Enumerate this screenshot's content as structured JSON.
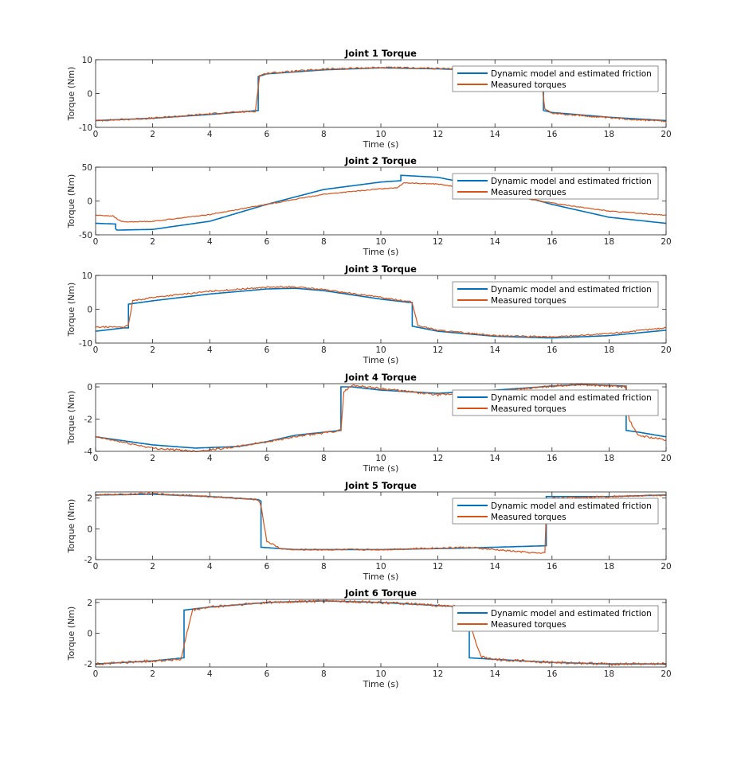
{
  "colors": {
    "model": "#0072BD",
    "measured": "#D95319",
    "axis": "#262626",
    "legend_border": "#777777"
  },
  "legend": {
    "placement": "top-right",
    "model_label": "Dynamic model and estimated friction",
    "measured_label": "Measured torques"
  },
  "chart_data": [
    {
      "type": "line",
      "title": "Joint 1 Torque",
      "xlabel": "Time (s)",
      "ylabel": "Torque (Nm)",
      "xlim": [
        0,
        20
      ],
      "ylim": [
        -10,
        10
      ],
      "xticks": [
        0,
        2,
        4,
        6,
        8,
        10,
        12,
        14,
        16,
        18,
        20
      ],
      "yticks": [
        -10,
        0,
        10
      ],
      "grid": false,
      "series": [
        {
          "name": "Dynamic model and estimated friction",
          "x": [
            0,
            2,
            4,
            5.7,
            5.7,
            6,
            8,
            10,
            12,
            13,
            15.7,
            15.7,
            16,
            18,
            20
          ],
          "y": [
            -8,
            -7.3,
            -6.2,
            -5,
            5,
            5.8,
            7,
            7.6,
            7.3,
            7.0,
            6.5,
            -5,
            -5.6,
            -7,
            -8
          ]
        },
        {
          "name": "Measured torques",
          "noise": 0.25,
          "x": [
            0,
            2,
            4,
            5.6,
            5.75,
            6,
            8,
            10,
            12,
            13,
            15.6,
            15.75,
            16,
            18,
            20
          ],
          "y": [
            -8,
            -7.3,
            -6,
            -5.2,
            5.3,
            6,
            7.2,
            7.7,
            7.4,
            7.0,
            6.6,
            -4.6,
            -5.8,
            -7.2,
            -8.2
          ]
        }
      ]
    },
    {
      "type": "line",
      "title": "Joint 2 Torque",
      "xlabel": "Time (s)",
      "ylabel": "Torque (Nm)",
      "xlim": [
        0,
        20
      ],
      "ylim": [
        -50,
        50
      ],
      "xticks": [
        0,
        2,
        4,
        6,
        8,
        10,
        12,
        14,
        16,
        18,
        20
      ],
      "yticks": [
        -50,
        0,
        50
      ],
      "grid": false,
      "series": [
        {
          "name": "Dynamic model and estimated friction",
          "x": [
            0,
            0.7,
            0.7,
            0.75,
            2,
            4,
            6,
            8,
            10,
            10.7,
            10.7,
            12,
            14,
            16,
            18,
            20
          ],
          "y": [
            -33,
            -34,
            -41,
            -43,
            -42,
            -30,
            -5,
            17,
            28,
            30,
            38,
            35,
            18,
            -5,
            -24,
            -33
          ]
        },
        {
          "name": "Measured torques",
          "noise": 0.6,
          "x": [
            0,
            0.6,
            0.8,
            1,
            2,
            4,
            6,
            8,
            10,
            10.6,
            10.8,
            12,
            14,
            16,
            18,
            20
          ],
          "y": [
            -21,
            -22,
            -28,
            -31,
            -30,
            -20,
            -5,
            10,
            18,
            20,
            27,
            25,
            12,
            -3,
            -15,
            -21
          ]
        }
      ]
    },
    {
      "type": "line",
      "title": "Joint 3 Torque",
      "xlabel": "Time (s)",
      "ylabel": "Torque (Nm)",
      "xlim": [
        0,
        20
      ],
      "ylim": [
        -10,
        10
      ],
      "xticks": [
        0,
        2,
        4,
        6,
        8,
        10,
        12,
        14,
        16,
        18,
        20
      ],
      "yticks": [
        -10,
        0,
        10
      ],
      "grid": false,
      "series": [
        {
          "name": "Dynamic model and estimated friction",
          "x": [
            0,
            1,
            1.15,
            1.15,
            2,
            4,
            6,
            7,
            8,
            10,
            11,
            11.1,
            11.1,
            12,
            14,
            16,
            18,
            20
          ],
          "y": [
            -6.5,
            -5.5,
            -5.5,
            1.5,
            2.5,
            4.5,
            6,
            6.2,
            5.5,
            3,
            2,
            2,
            -5,
            -6.5,
            -8,
            -8.5,
            -7.8,
            -6.2
          ]
        },
        {
          "name": "Measured torques",
          "noise": 0.2,
          "x": [
            0,
            1,
            1.15,
            1.3,
            2,
            4,
            6,
            7,
            8,
            10,
            11,
            11.1,
            11.3,
            12,
            14,
            16,
            18,
            20
          ],
          "y": [
            -5.3,
            -5.2,
            -4.8,
            2.5,
            3.5,
            5.3,
            6.5,
            6.6,
            5.8,
            3.5,
            2.3,
            1.8,
            -4.8,
            -6.2,
            -7.8,
            -8.2,
            -7.2,
            -5.5
          ]
        }
      ]
    },
    {
      "type": "line",
      "title": "Joint 4 Torque",
      "xlabel": "Time (s)",
      "ylabel": "Torque (Nm)",
      "xlim": [
        0,
        20
      ],
      "ylim": [
        -4,
        0.2
      ],
      "xticks": [
        0,
        2,
        4,
        6,
        8,
        10,
        12,
        14,
        16,
        18,
        20
      ],
      "yticks": [
        -4,
        -2,
        0
      ],
      "grid": false,
      "series": [
        {
          "name": "Dynamic model and estimated friction",
          "x": [
            0,
            2,
            3.5,
            5,
            6,
            7,
            8.6,
            8.6,
            9,
            10,
            12,
            14,
            16,
            17,
            18.6,
            18.6,
            19,
            20
          ],
          "y": [
            -3.1,
            -3.6,
            -3.8,
            -3.7,
            -3.4,
            -3.0,
            -2.7,
            0,
            0,
            -0.2,
            -0.4,
            -0.2,
            0.05,
            0.15,
            0.05,
            -2.7,
            -2.8,
            -3.1
          ]
        },
        {
          "name": "Measured torques",
          "noise": 0.06,
          "x": [
            0,
            2,
            3.5,
            5,
            6,
            7,
            8.6,
            8.7,
            9,
            10,
            12,
            14,
            16,
            17,
            18.6,
            18.7,
            19,
            20
          ],
          "y": [
            -3.1,
            -3.8,
            -4.0,
            -3.7,
            -3.4,
            -3.1,
            -2.7,
            -0.3,
            0.1,
            -0.1,
            -0.5,
            -0.3,
            0.05,
            0.15,
            0,
            -2.0,
            -3.0,
            -3.3
          ]
        }
      ]
    },
    {
      "type": "line",
      "title": "Joint 5 Torque",
      "xlabel": "Time (s)",
      "ylabel": "Torque (Nm)",
      "xlim": [
        0,
        20
      ],
      "ylim": [
        -2,
        2.4
      ],
      "xticks": [
        0,
        2,
        4,
        6,
        8,
        10,
        12,
        14,
        16,
        18,
        20
      ],
      "yticks": [
        -2,
        0,
        2
      ],
      "grid": false,
      "series": [
        {
          "name": "Dynamic model and estimated friction",
          "x": [
            0,
            2,
            4,
            5.7,
            5.8,
            5.8,
            7,
            10,
            13,
            15.8,
            15.8,
            16,
            18,
            20
          ],
          "y": [
            2.2,
            2.25,
            2.1,
            1.9,
            1.8,
            -1.2,
            -1.35,
            -1.35,
            -1.25,
            -1.1,
            2.1,
            2.1,
            2.1,
            2.2
          ]
        },
        {
          "name": "Measured torques",
          "noise": 0.05,
          "x": [
            0,
            2,
            4,
            5.7,
            5.8,
            6.0,
            6.5,
            7,
            10,
            13,
            15.6,
            15.75,
            15.8,
            16,
            18,
            20
          ],
          "y": [
            2.2,
            2.3,
            2.1,
            1.9,
            1.5,
            -0.8,
            -1.3,
            -1.35,
            -1.35,
            -1.2,
            -1.6,
            -1.5,
            1.2,
            2.0,
            2.1,
            2.2
          ]
        }
      ]
    },
    {
      "type": "line",
      "title": "Joint 6 Torque",
      "xlabel": "Time (s)",
      "ylabel": "Torque (Nm)",
      "xlim": [
        0,
        20
      ],
      "ylim": [
        -2.2,
        2.2
      ],
      "xticks": [
        0,
        2,
        4,
        6,
        8,
        10,
        12,
        14,
        16,
        18,
        20
      ],
      "yticks": [
        -2,
        0,
        2
      ],
      "grid": false,
      "series": [
        {
          "name": "Dynamic model and estimated friction",
          "x": [
            0,
            2,
            3.1,
            3.1,
            4,
            6,
            8,
            10,
            12,
            13.1,
            13.1,
            14,
            16,
            18,
            20
          ],
          "y": [
            -2,
            -1.8,
            -1.6,
            1.5,
            1.7,
            2.0,
            2.1,
            2.0,
            1.8,
            1.7,
            -1.6,
            -1.7,
            -1.9,
            -2.0,
            -2.0
          ]
        },
        {
          "name": "Measured torques",
          "noise": 0.08,
          "x": [
            0,
            2,
            3.0,
            3.2,
            3.4,
            4,
            6,
            8,
            10,
            12,
            13.0,
            13.2,
            13.5,
            14,
            16,
            18,
            20
          ],
          "y": [
            -2,
            -1.8,
            -1.7,
            0,
            1.5,
            1.7,
            2.0,
            2.1,
            2.0,
            1.8,
            1.7,
            0.2,
            -1.5,
            -1.7,
            -1.9,
            -2.0,
            -2.0
          ]
        }
      ]
    }
  ]
}
